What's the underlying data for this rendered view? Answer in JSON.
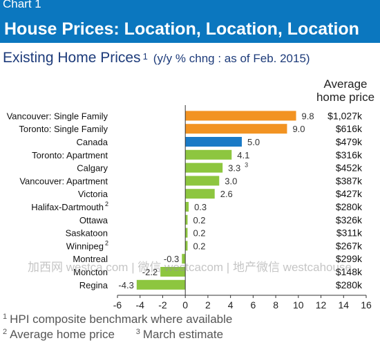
{
  "header": {
    "kicker": "Chart 1",
    "title": "House Prices: Location, Location, Location"
  },
  "chart_data": {
    "type": "bar",
    "orientation": "horizontal",
    "title": "Existing Home Prices",
    "title_footnote_mark": "1",
    "subtitle": "(y/y % chng : as of Feb. 2015)",
    "price_column_header": "Average home price",
    "categories": [
      {
        "label": "Vancouver: Single Family",
        "value": 9.8,
        "value_label": "9.8",
        "price": "$1,027k",
        "color": "#f29322"
      },
      {
        "label": "Toronto: Single Family",
        "value": 9.0,
        "value_label": "9.0",
        "price": "$616k",
        "color": "#f29322"
      },
      {
        "label": "Canada",
        "value": 5.0,
        "value_label": "5.0",
        "price": "$479k",
        "color": "#1a7ac6"
      },
      {
        "label": "Toronto: Apartment",
        "value": 4.1,
        "value_label": "4.1",
        "price": "$316k",
        "color": "#8dc63f"
      },
      {
        "label": "Calgary",
        "value": 3.3,
        "value_label": "3.3",
        "value_mark": "3",
        "price": "$452k",
        "color": "#8dc63f"
      },
      {
        "label": "Vancouver: Apartment",
        "value": 3.0,
        "value_label": "3.0",
        "price": "$387k",
        "color": "#8dc63f"
      },
      {
        "label": "Victoria",
        "value": 2.6,
        "value_label": "2.6",
        "price": "$427k",
        "color": "#8dc63f"
      },
      {
        "label": "Halifax-Dartmouth",
        "label_mark": "2",
        "value": 0.3,
        "value_label": "0.3",
        "price": "$280k",
        "color": "#8dc63f"
      },
      {
        "label": "Ottawa",
        "value": 0.2,
        "value_label": "0.2",
        "price": "$326k",
        "color": "#8dc63f"
      },
      {
        "label": "Saskatoon",
        "value": 0.2,
        "value_label": "0.2",
        "price": "$311k",
        "color": "#8dc63f"
      },
      {
        "label": "Winnipeg",
        "label_mark": "2",
        "value": 0.2,
        "value_label": "0.2",
        "price": "$267k",
        "color": "#8dc63f"
      },
      {
        "label": "Montreal",
        "value": -0.3,
        "value_label": "-0.3",
        "price": "$299k",
        "color": "#8dc63f"
      },
      {
        "label": "Moncton",
        "value": -2.2,
        "value_label": "-2.2",
        "price": "$148k",
        "color": "#8dc63f"
      },
      {
        "label": "Regina",
        "value": -4.3,
        "value_label": "-4.3",
        "price": "$280k",
        "color": "#8dc63f"
      }
    ],
    "xlim": [
      -6,
      16
    ],
    "xticks": [
      "-6",
      "-4",
      "-2",
      "0",
      "2",
      "4",
      "6",
      "8",
      "10",
      "12",
      "14",
      "16"
    ],
    "grid": false
  },
  "footnotes": {
    "note1_mark": "1",
    "note1": "HPI composite benchmark where available",
    "note2_mark": "2",
    "note2": "Average home price",
    "note3_mark": "3",
    "note3": "March estimate"
  },
  "watermark": "加西网 westca.com | 微信 westcacom | 地产微信 westcahouse"
}
